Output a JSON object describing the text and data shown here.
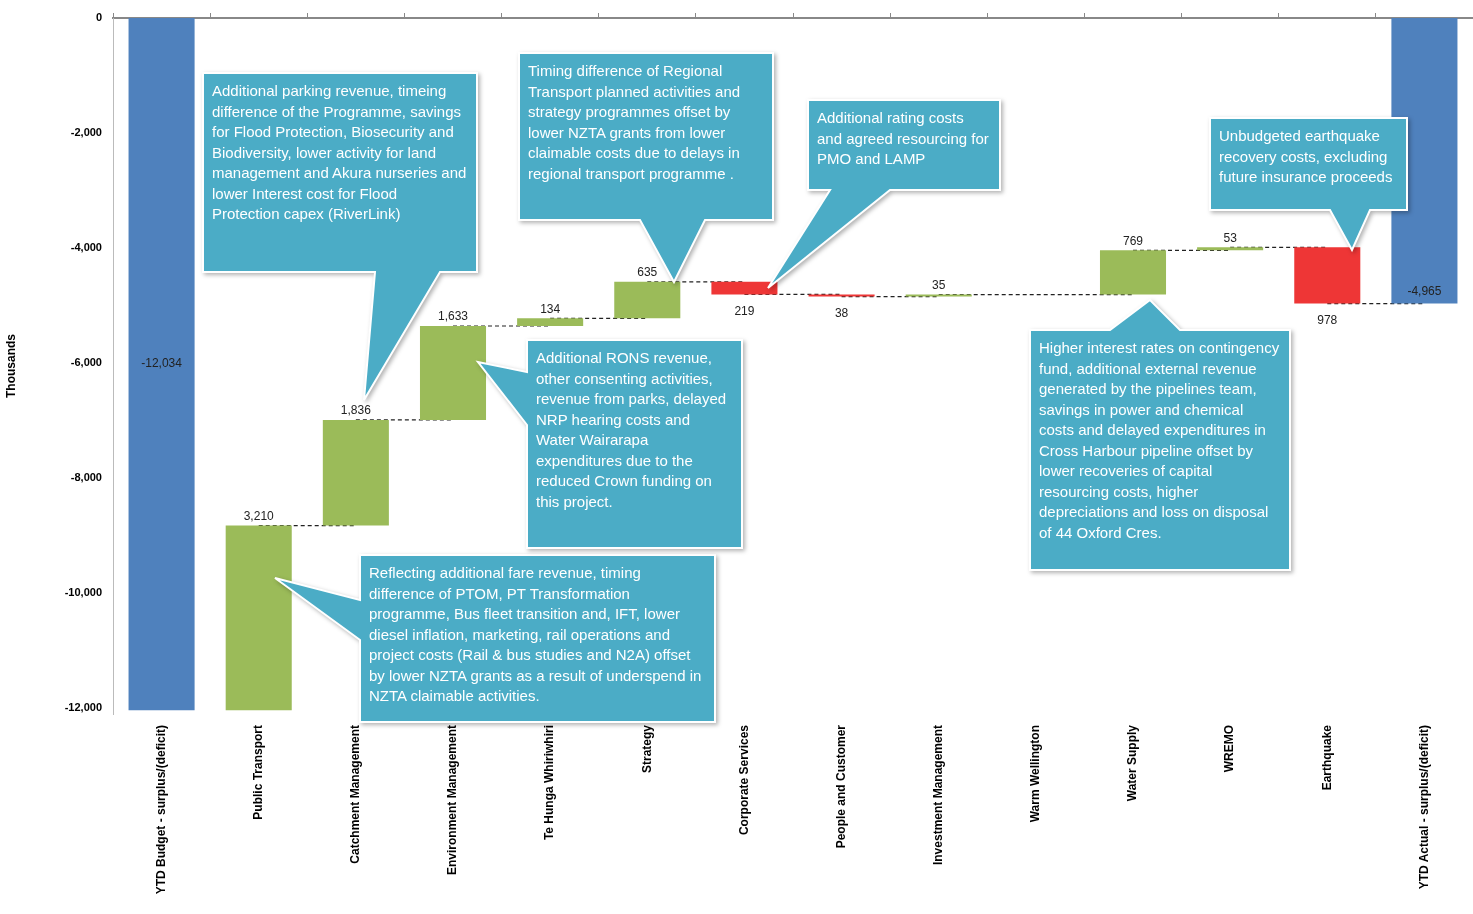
{
  "chart_data": {
    "type": "bar",
    "ylabel": "Thousands",
    "categories": [
      "YTD Budget - surplus/(deficit)",
      "Public Transport",
      "Catchment Management",
      "Environment Management",
      "Te Hunga Whiriwhiri",
      "Strategy",
      "Corporate Services",
      "People and Customer",
      "Investment Management",
      "Warm Wellington",
      "Water Supply",
      "WREMO",
      "Earthquake",
      "YTD Actual - surplus/(deficit)"
    ],
    "base": [
      0,
      -12034,
      -8824,
      -6988,
      -5355,
      -5221,
      -4586,
      -4805,
      -4843,
      null,
      -4808,
      -4039,
      -3986,
      0
    ],
    "values": [
      -12034,
      3210,
      1836,
      1633,
      134,
      635,
      -219,
      -38,
      35,
      null,
      769,
      53,
      -978,
      -4965
    ],
    "value_labels": [
      "-12,034",
      "3,210",
      "1,836",
      "1,633",
      "134",
      "635",
      "219",
      "38",
      "35",
      null,
      "769",
      "53",
      "978",
      "-4,965"
    ],
    "colors": [
      "#4f81bd",
      "#9bbb59",
      "#9bbb59",
      "#9bbb59",
      "#9bbb59",
      "#9bbb59",
      "#ee3636",
      "#ee3636",
      "#9bbb59",
      "#9bbb59",
      "#9bbb59",
      "#9bbb59",
      "#ee3636",
      "#4f81bd"
    ],
    "ylim": [
      -12100,
      0
    ],
    "yticks": [
      {
        "value": 0,
        "label": "0"
      },
      {
        "value": -2000,
        "label": "-2,000"
      },
      {
        "value": -4000,
        "label": "-4,000"
      },
      {
        "value": -6000,
        "label": "-6,000"
      },
      {
        "value": -8000,
        "label": "-8,000"
      },
      {
        "value": -10000,
        "label": "-10,000"
      },
      {
        "value": -12000,
        "label": "-12,000"
      }
    ],
    "grid": false,
    "legend": false,
    "annotations": [
      "Reflecting additional fare revenue, timing difference of PTOM, PT Transformation programme, Bus fleet transition and, IFT, lower diesel inflation, marketing, rail operations and project costs (Rail & bus studies and N2A) offset by lower NZTA grants as a result of underspend in NZTA claimable activities.",
      "Additional parking revenue, timeing difference of the Programme, savings for Flood Protection, Biosecurity and Biodiversity,  lower activity for land management and Akura nurseries and lower Interest cost for Flood Protection capex (RiverLink)",
      "Additional RONS revenue, other consenting activities, revenue from parks, delayed NRP hearing costs and Water Wairarapa expenditures due to the reduced Crown funding on this project.",
      "Timing difference  of Regional Transport planned activities and  strategy programmes offset by lower NZTA grants from lower claimable costs due to delays in regional transport programme .",
      "Additional rating costs and agreed resourcing for PMO and LAMP",
      "Higher interest rates on contingency fund, additional external revenue generated by the pipelines team, savings in power and chemical costs and delayed expenditures in Cross Harbour pipeline offset by lower recoveries of  capital resourcing costs, higher depreciations and loss on disposal of 44 Oxford Cres.",
      "Unbudgeted earthquake recovery costs, excluding future insurance proceeds"
    ]
  }
}
